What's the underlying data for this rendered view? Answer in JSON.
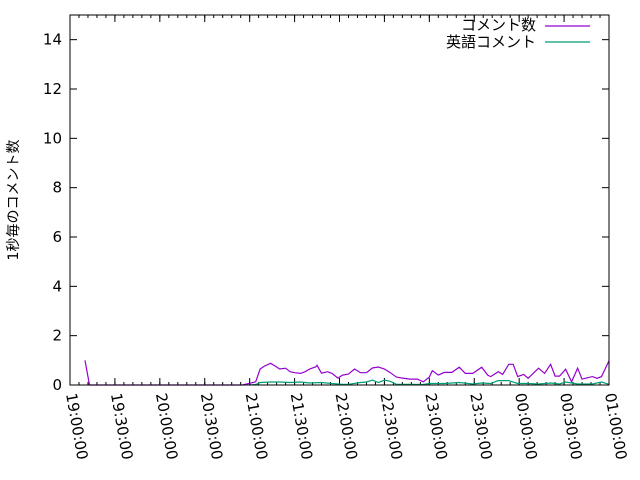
{
  "chart_data": {
    "type": "line",
    "title": "",
    "xlabel": "",
    "ylabel": "1秒毎のコメント数",
    "xlim": [
      "19:00:00",
      "01:00:00"
    ],
    "ylim": [
      0,
      15
    ],
    "x_tick_labels": [
      "19:00:00",
      "19:30:00",
      "20:00:00",
      "20:30:00",
      "21:00:00",
      "21:30:00",
      "22:00:00",
      "22:30:00",
      "23:00:00",
      "23:30:00",
      "00:00:00",
      "00:30:00",
      "01:00:00"
    ],
    "y_ticks": [
      0,
      2,
      4,
      6,
      8,
      10,
      12,
      14
    ],
    "grid": false,
    "legend_position": "top-right",
    "series": [
      {
        "name": "コメント数",
        "color": "#9400d3",
        "points": [
          [
            "19:10",
            1.0
          ],
          [
            "19:13",
            0
          ],
          [
            "20:55",
            0
          ],
          [
            "21:00",
            0.07
          ],
          [
            "21:04",
            0.13
          ],
          [
            "21:07",
            0.65
          ],
          [
            "21:10",
            0.77
          ],
          [
            "21:14",
            0.88
          ],
          [
            "21:17",
            0.77
          ],
          [
            "21:20",
            0.65
          ],
          [
            "21:24",
            0.68
          ],
          [
            "21:27",
            0.54
          ],
          [
            "21:30",
            0.5
          ],
          [
            "21:34",
            0.47
          ],
          [
            "21:37",
            0.54
          ],
          [
            "21:40",
            0.65
          ],
          [
            "21:44",
            0.73
          ],
          [
            "21:45",
            0.8
          ],
          [
            "21:48",
            0.48
          ],
          [
            "21:52",
            0.54
          ],
          [
            "21:55",
            0.47
          ],
          [
            "21:59",
            0.28
          ],
          [
            "22:02",
            0.4
          ],
          [
            "22:06",
            0.44
          ],
          [
            "22:10",
            0.65
          ],
          [
            "22:14",
            0.5
          ],
          [
            "22:18",
            0.5
          ],
          [
            "22:22",
            0.69
          ],
          [
            "22:26",
            0.73
          ],
          [
            "22:30",
            0.65
          ],
          [
            "22:34",
            0.5
          ],
          [
            "22:38",
            0.32
          ],
          [
            "22:42",
            0.28
          ],
          [
            "22:47",
            0.24
          ],
          [
            "22:52",
            0.24
          ],
          [
            "22:56",
            0.13
          ],
          [
            "23:00",
            0.32
          ],
          [
            "23:02",
            0.58
          ],
          [
            "23:06",
            0.4
          ],
          [
            "23:10",
            0.51
          ],
          [
            "23:15",
            0.51
          ],
          [
            "23:20",
            0.72
          ],
          [
            "23:24",
            0.47
          ],
          [
            "23:29",
            0.47
          ],
          [
            "23:35",
            0.72
          ],
          [
            "23:39",
            0.4
          ],
          [
            "23:41",
            0.34
          ],
          [
            "23:46",
            0.54
          ],
          [
            "23:49",
            0.43
          ],
          [
            "23:53",
            0.84
          ],
          [
            "23:56",
            0.84
          ],
          [
            "23:59",
            0.34
          ],
          [
            "00:03",
            0.43
          ],
          [
            "00:06",
            0.27
          ],
          [
            "00:13",
            0.68
          ],
          [
            "00:17",
            0.47
          ],
          [
            "00:21",
            0.84
          ],
          [
            "00:24",
            0.36
          ],
          [
            "00:27",
            0.36
          ],
          [
            "00:31",
            0.64
          ],
          [
            "00:35",
            0.13
          ],
          [
            "00:39",
            0.68
          ],
          [
            "00:42",
            0.24
          ],
          [
            "00:49",
            0.34
          ],
          [
            "00:52",
            0.27
          ],
          [
            "00:55",
            0.34
          ],
          [
            "01:00",
            0.98
          ]
        ]
      },
      {
        "name": "英語コメント",
        "color": "#009e73",
        "points": [
          [
            "21:00",
            0
          ],
          [
            "21:04",
            0.02
          ],
          [
            "21:07",
            0.1
          ],
          [
            "21:14",
            0.12
          ],
          [
            "21:20",
            0.12
          ],
          [
            "21:27",
            0.1
          ],
          [
            "21:34",
            0.12
          ],
          [
            "21:40",
            0.08
          ],
          [
            "21:48",
            0.1
          ],
          [
            "21:55",
            0.06
          ],
          [
            "22:02",
            0.03
          ],
          [
            "22:06",
            0.03
          ],
          [
            "22:14",
            0.1
          ],
          [
            "22:18",
            0.12
          ],
          [
            "22:22",
            0.2
          ],
          [
            "22:26",
            0.1
          ],
          [
            "22:30",
            0.2
          ],
          [
            "22:34",
            0.15
          ],
          [
            "22:38",
            0.03
          ],
          [
            "22:47",
            0.03
          ],
          [
            "22:56",
            0.02
          ],
          [
            "23:00",
            0.06
          ],
          [
            "23:10",
            0.06
          ],
          [
            "23:20",
            0.1
          ],
          [
            "23:29",
            0.04
          ],
          [
            "23:35",
            0.08
          ],
          [
            "23:41",
            0.06
          ],
          [
            "23:46",
            0.18
          ],
          [
            "23:53",
            0.18
          ],
          [
            "23:59",
            0.06
          ],
          [
            "00:06",
            0.06
          ],
          [
            "00:13",
            0.04
          ],
          [
            "00:21",
            0.08
          ],
          [
            "00:27",
            0.04
          ],
          [
            "00:31",
            0.12
          ],
          [
            "00:39",
            0.04
          ],
          [
            "00:49",
            0.04
          ],
          [
            "00:55",
            0.12
          ],
          [
            "01:00",
            0.03
          ]
        ]
      }
    ]
  }
}
